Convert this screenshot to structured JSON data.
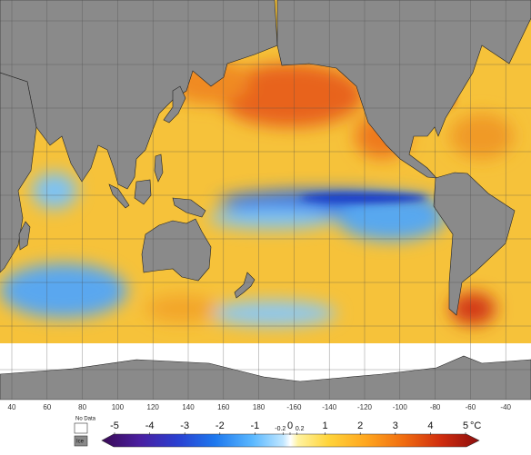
{
  "map": {
    "lon_labels": [
      40,
      60,
      80,
      100,
      120,
      140,
      160,
      180,
      -160,
      -140,
      -120,
      -100,
      -80,
      -60,
      -40
    ],
    "legend": {
      "no_data": "No Data",
      "ice": "Ice",
      "ticks": [
        -5,
        -4,
        -3,
        -2,
        -1,
        -0.2,
        0,
        0.2,
        1,
        2,
        3,
        4,
        5
      ],
      "unit": "°C"
    }
  }
}
